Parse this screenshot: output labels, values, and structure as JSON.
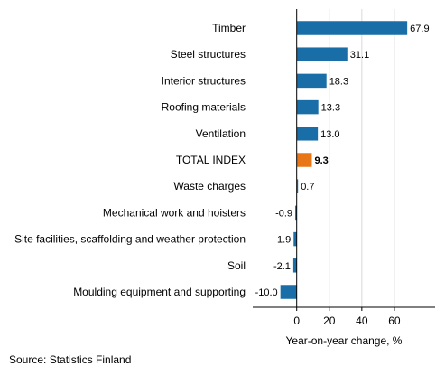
{
  "chart_data": {
    "type": "bar",
    "orientation": "horizontal",
    "categories": [
      "Timber",
      "Steel structures",
      "Interior structures",
      "Roofing materials",
      "Ventilation",
      "TOTAL INDEX",
      "Waste charges",
      "Mechanical work and hoisters",
      "Site facilities, scaffolding and weather protection",
      "Soil",
      "Moulding equipment and supporting"
    ],
    "values": [
      67.9,
      31.1,
      18.3,
      13.3,
      13.0,
      9.3,
      0.7,
      -0.9,
      -1.9,
      -2.1,
      -10.0
    ],
    "value_labels": [
      "67.9",
      "31.1",
      "18.3",
      "13.3",
      "13.0",
      "9.3",
      "0.7",
      "-0.9",
      "-1.9",
      "-2.1",
      "-10.0"
    ],
    "highlight_category": "TOTAL INDEX",
    "xlabel": "Year-on-year change, %",
    "xticks": [
      "0",
      "20",
      "40",
      "60"
    ],
    "xlim": [
      -27,
      85
    ],
    "grid": "vertical",
    "colors": {
      "bar": "#1a6ea8",
      "highlight": "#e97616",
      "grid": "#d9d9d9",
      "axis": "#000000"
    }
  },
  "source": "Source: Statistics Finland"
}
